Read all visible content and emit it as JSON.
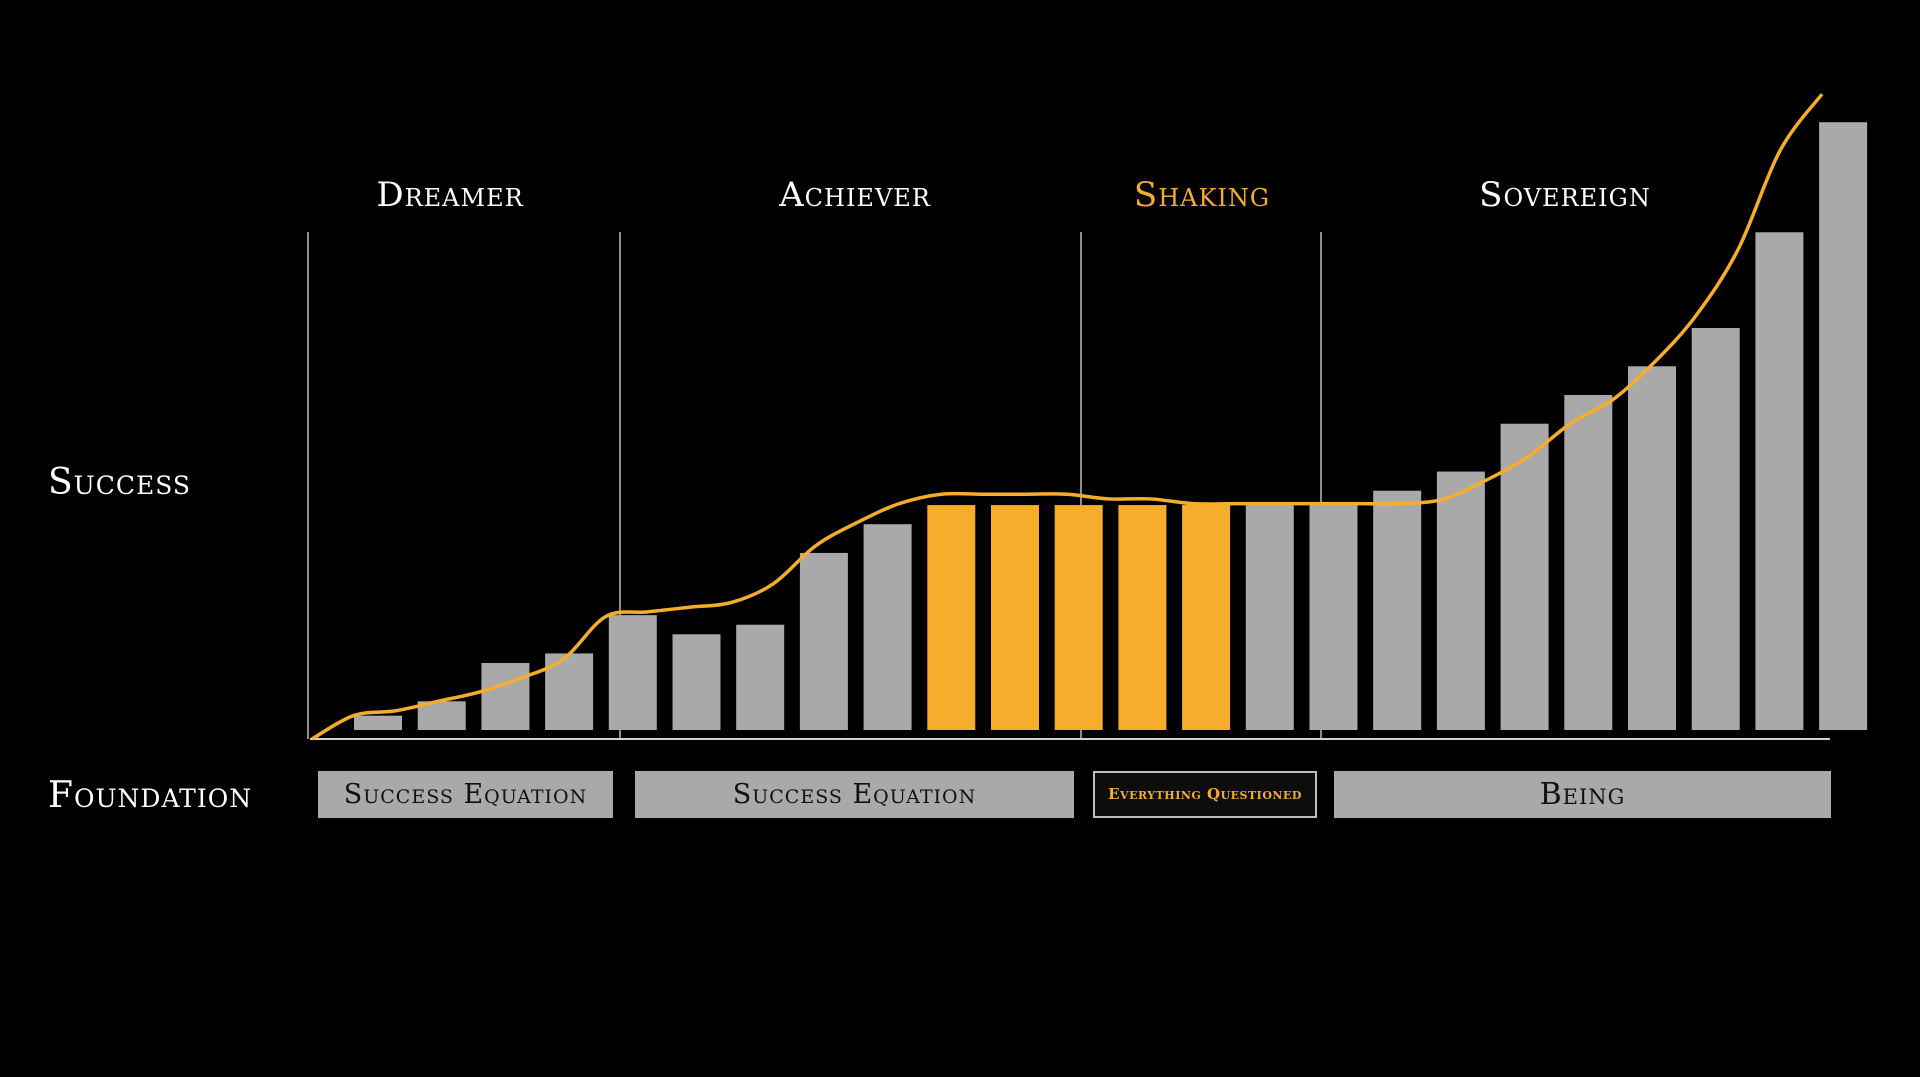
{
  "axis_labels": {
    "y": "Success",
    "foundation": "Foundation"
  },
  "phases": [
    {
      "label": "Dreamer",
      "color": "#ffffff"
    },
    {
      "label": "Achiever",
      "color": "#ffffff"
    },
    {
      "label": "Shaking",
      "color": "#f6ad2c"
    },
    {
      "label": "Sovereign",
      "color": "#ffffff"
    }
  ],
  "foundation_boxes": [
    {
      "label": "Success Equation"
    },
    {
      "label": "Success Equation"
    },
    {
      "label": "Everything Questioned"
    },
    {
      "label": "Being"
    }
  ],
  "colors": {
    "bar": "#a9a9a9",
    "highlight": "#f6ad2c",
    "curve": "#f6ad2c",
    "divider": "#bdbdbd",
    "background": "#000000"
  },
  "chart_data": {
    "type": "bar",
    "y_axis_label": "Success",
    "values": [
      3,
      6,
      14,
      16,
      24,
      20,
      22,
      37,
      43,
      47,
      47,
      47,
      47,
      47,
      47,
      47,
      50,
      54,
      64,
      70,
      76,
      84,
      104,
      127
    ],
    "highlighted_indices": [
      9,
      10,
      11,
      12,
      13
    ],
    "phase_ranges": [
      {
        "phase": "Dreamer",
        "start": 0,
        "end": 4
      },
      {
        "phase": "Achiever",
        "start": 5,
        "end": 8
      },
      {
        "phase": "Shaking",
        "start": 9,
        "end": 12
      },
      {
        "phase": "Sovereign",
        "start": 13,
        "end": 23
      }
    ],
    "curve": [
      0,
      5,
      6,
      8,
      10,
      13,
      17,
      26,
      27,
      28,
      29,
      33,
      41,
      46,
      50,
      52,
      52,
      52,
      52,
      51,
      51,
      50,
      50,
      50,
      50,
      50,
      50,
      51,
      55,
      60,
      67,
      72,
      80,
      90,
      104,
      125,
      137
    ],
    "ylim": [
      0,
      140
    ]
  }
}
